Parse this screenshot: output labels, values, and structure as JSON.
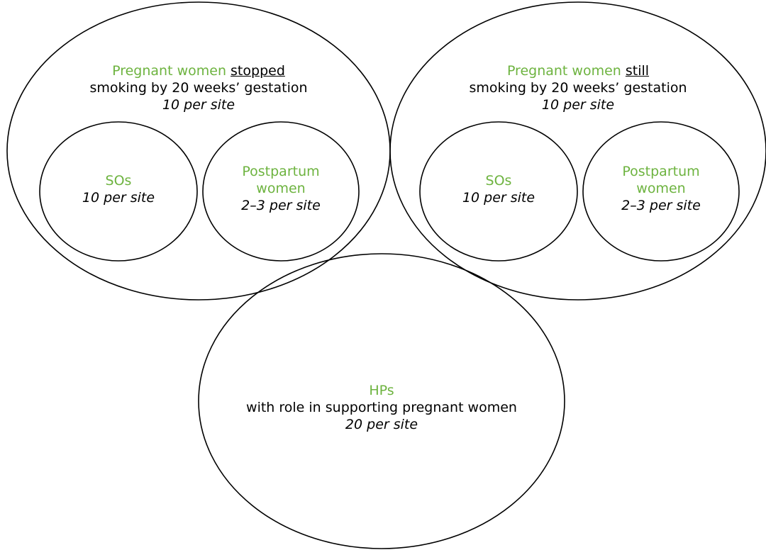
{
  "colors": {
    "group_label": "#6db33f",
    "outline": "#000000",
    "text": "#000000"
  },
  "groups": {
    "stopped": {
      "title": "Pregnant women",
      "qualifier": "stopped",
      "description": "smoking by 20 weeks’ gestation",
      "count": "10 per site",
      "subgroups": {
        "sos": {
          "title": "SOs",
          "count": "10 per site"
        },
        "postpartum": {
          "title_line1": "Postpartum",
          "title_line2": "women",
          "count": "2–3 per site"
        }
      }
    },
    "still": {
      "title": "Pregnant women",
      "qualifier": "still",
      "description": "smoking by 20 weeks’ gestation",
      "count": "10 per site",
      "subgroups": {
        "sos": {
          "title": "SOs",
          "count": "10 per site"
        },
        "postpartum": {
          "title_line1": "Postpartum",
          "title_line2": "women",
          "count": "2–3 per site"
        }
      }
    },
    "hps": {
      "title": "HPs",
      "description": "with role in supporting pregnant women",
      "count": "20 per site"
    }
  }
}
